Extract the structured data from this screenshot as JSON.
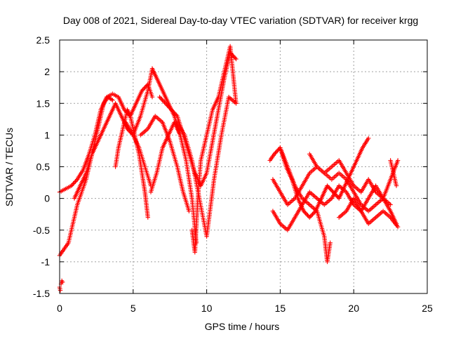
{
  "chart_data": {
    "type": "scatter",
    "title": "Day 008 of 2021, Sidereal Day-to-day VTEC variation (SDTVAR) for receiver krgg",
    "xlabel": "GPS time / hours",
    "ylabel": "SDTVAR / TECUs",
    "xlim": [
      0,
      25
    ],
    "ylim": [
      -1.5,
      2.5
    ],
    "x_ticks": [
      "0",
      "5",
      "10",
      "15",
      "20",
      "25"
    ],
    "y_ticks": [
      "-1.5",
      "-1",
      "-0.5",
      "0",
      "0.5",
      "1",
      "1.5",
      "2",
      "2.5"
    ],
    "grid": true,
    "marker": "plus",
    "series": [
      {
        "name": "krgg",
        "color": "#ff0000",
        "tracks": [
          {
            "x": [
              0.0,
              0.4,
              0.8,
              1.2,
              1.6,
              2.0,
              2.4,
              2.8,
              3.2,
              3.6,
              4.0,
              4.4,
              4.8,
              5.2,
              5.6,
              6.0,
              6.3
            ],
            "y": [
              0.1,
              0.15,
              0.2,
              0.3,
              0.45,
              0.7,
              1.0,
              1.4,
              1.6,
              1.65,
              1.6,
              1.4,
              1.3,
              1.5,
              1.7,
              1.8,
              1.6
            ]
          },
          {
            "x": [
              0.0,
              0.3,
              0.6,
              0.9,
              1.2,
              1.5,
              1.8,
              2.1,
              2.4,
              2.7,
              3.0,
              3.3,
              3.6
            ],
            "y": [
              -0.9,
              -0.8,
              -0.7,
              -0.4,
              -0.1,
              0.1,
              0.3,
              0.6,
              0.9,
              1.2,
              1.5,
              1.6,
              1.55
            ]
          },
          {
            "x": [
              0.1,
              0.15,
              0.2
            ],
            "y": [
              -1.35,
              -1.3,
              -1.32
            ]
          },
          {
            "x": [
              0.0,
              0.05
            ],
            "y": [
              -1.4,
              -1.45
            ]
          },
          {
            "x": [
              1.0,
              1.4,
              1.8,
              2.2,
              2.6,
              3.0,
              3.4,
              3.8,
              4.2,
              4.6,
              5.0,
              5.4,
              5.8,
              6.2
            ],
            "y": [
              0.0,
              0.2,
              0.4,
              0.7,
              0.9,
              1.1,
              1.3,
              1.5,
              1.3,
              1.1,
              1.0,
              0.8,
              0.5,
              0.2
            ]
          },
          {
            "x": [
              3.8,
              4.0,
              4.2,
              4.4,
              4.6,
              4.8,
              5.0,
              5.2,
              5.4,
              5.6,
              5.8,
              6.0
            ],
            "y": [
              0.5,
              0.8,
              1.0,
              1.2,
              1.4,
              1.3,
              1.1,
              0.9,
              0.7,
              0.4,
              0.1,
              -0.3
            ]
          },
          {
            "x": [
              4.5,
              5.0,
              5.5,
              6.0,
              6.3,
              6.6,
              7.0,
              7.4,
              7.8,
              8.2
            ],
            "y": [
              1.2,
              1.0,
              1.3,
              1.7,
              2.05,
              1.9,
              1.7,
              1.5,
              1.3,
              1.0
            ]
          },
          {
            "x": [
              5.5,
              6.0,
              6.5,
              7.0,
              7.5,
              8.0,
              8.4,
              8.8
            ],
            "y": [
              1.0,
              1.1,
              1.3,
              1.2,
              0.9,
              0.5,
              0.1,
              -0.2
            ]
          },
          {
            "x": [
              6.2,
              6.6,
              7.0,
              7.4,
              7.8,
              8.2,
              8.6,
              9.0,
              9.3
            ],
            "y": [
              0.1,
              0.4,
              0.8,
              1.0,
              1.2,
              1.0,
              0.6,
              0.0,
              -0.7
            ]
          },
          {
            "x": [
              6.8,
              7.2,
              7.6,
              8.0,
              8.4,
              8.8,
              9.2,
              9.6,
              10.0,
              10.4,
              10.8,
              11.2,
              11.6,
              12.0
            ],
            "y": [
              1.6,
              1.5,
              1.4,
              1.3,
              1.0,
              0.7,
              0.4,
              0.2,
              0.4,
              0.9,
              1.4,
              1.9,
              2.3,
              2.2
            ]
          },
          {
            "x": [
              8.0,
              8.5,
              9.0,
              9.5,
              10.0,
              10.5,
              11.0,
              11.5,
              12.0
            ],
            "y": [
              1.2,
              1.0,
              0.6,
              0.0,
              -0.6,
              0.3,
              1.0,
              1.6,
              1.5
            ]
          },
          {
            "x": [
              9.0,
              9.2,
              9.4,
              9.6,
              10.0,
              10.4,
              10.8,
              11.2,
              11.6,
              12.0
            ],
            "y": [
              -0.5,
              -0.85,
              0.0,
              0.6,
              1.0,
              1.4,
              1.6,
              2.0,
              2.4,
              1.5
            ]
          },
          {
            "x": [
              14.3,
              14.6,
              15.0,
              15.4,
              15.8,
              16.2,
              16.6,
              17.0,
              17.4,
              17.8,
              18.2,
              18.6,
              19.0,
              19.4,
              19.8,
              20.2,
              20.6,
              21.0
            ],
            "y": [
              0.6,
              0.7,
              0.8,
              0.5,
              0.3,
              0.0,
              -0.2,
              -0.3,
              -0.2,
              0.0,
              0.2,
              0.1,
              0.0,
              0.2,
              0.4,
              0.6,
              0.8,
              0.95
            ]
          },
          {
            "x": [
              14.5,
              15.0,
              15.5,
              16.0,
              16.5,
              17.0,
              17.5,
              18.0,
              18.5,
              19.0,
              19.5,
              20.0,
              20.5,
              21.0,
              21.5,
              22.0,
              22.5,
              22.9
            ],
            "y": [
              0.3,
              0.1,
              -0.1,
              0.0,
              0.2,
              0.4,
              0.5,
              0.4,
              0.3,
              0.4,
              0.3,
              0.1,
              -0.1,
              -0.2,
              -0.1,
              0.0,
              -0.2,
              -0.4
            ]
          },
          {
            "x": [
              14.5,
              15.0,
              15.5,
              16.0,
              16.5,
              17.0,
              17.5,
              18.0,
              18.5,
              19.0,
              19.5,
              20.0,
              20.5,
              21.0,
              21.5,
              22.0,
              22.5
            ],
            "y": [
              -0.2,
              -0.4,
              -0.5,
              -0.3,
              -0.1,
              0.1,
              0.0,
              -0.1,
              0.0,
              0.2,
              0.1,
              -0.1,
              -0.2,
              0.0,
              0.2,
              0.0,
              -0.1
            ]
          },
          {
            "x": [
              15.0,
              15.5,
              16.0,
              16.5,
              17.0,
              17.5,
              18.0,
              18.2,
              18.4
            ],
            "y": [
              0.8,
              0.5,
              0.2,
              0.0,
              -0.1,
              -0.2,
              -0.6,
              -1.0,
              -0.7
            ]
          },
          {
            "x": [
              17.0,
              17.5,
              18.0,
              18.5,
              19.0,
              19.5,
              20.0,
              20.5,
              21.0,
              21.5,
              22.0,
              22.5,
              23.0
            ],
            "y": [
              0.7,
              0.5,
              0.4,
              0.5,
              0.6,
              0.4,
              0.2,
              0.1,
              0.3,
              0.1,
              0.0,
              0.3,
              0.6
            ]
          },
          {
            "x": [
              19.0,
              19.5,
              20.0,
              20.5,
              21.0,
              21.5,
              22.0,
              22.5,
              23.0
            ],
            "y": [
              -0.3,
              -0.2,
              0.0,
              -0.2,
              -0.4,
              -0.3,
              -0.2,
              -0.3,
              -0.45
            ]
          },
          {
            "x": [
              22.5,
              22.7,
              22.9
            ],
            "y": [
              0.6,
              0.4,
              0.2
            ]
          }
        ]
      }
    ]
  }
}
